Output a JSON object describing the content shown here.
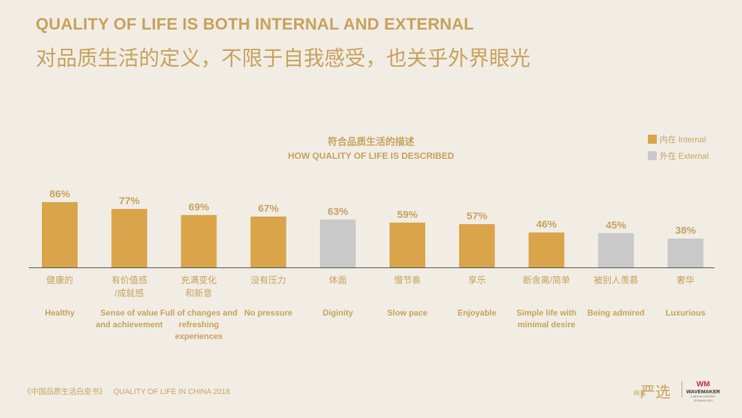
{
  "header": {
    "title_en": "QUALITY OF LIFE IS BOTH INTERNAL AND EXTERNAL",
    "title_zh": "对品质生活的定义，不限于自我感受，也关乎外界眼光"
  },
  "chart_data": {
    "type": "bar",
    "title": "符合品质生活的描述",
    "subtitle": "HOW QUALITY OF LIFE IS DESCRIBED",
    "categories_zh": [
      "健康的",
      "有价值感\n/成就感",
      "充满变化\n和新意",
      "没有压力",
      "体面",
      "慢节奏",
      "享乐",
      "断舍离/简单",
      "被别人羡慕",
      "奢华"
    ],
    "categories_en": [
      "Healthy",
      "Sense of value\nand achievement",
      "Full of changes and\nrefreshing\nexperiences",
      "No pressure",
      "Diginity",
      "Slow pace",
      "Enjoyable",
      "Simple life with\nminimal desire",
      "Being admired",
      "Luxurious"
    ],
    "values": [
      86,
      77,
      69,
      67,
      63,
      59,
      57,
      46,
      45,
      38
    ],
    "value_labels": [
      "86%",
      "77%",
      "69%",
      "67%",
      "63%",
      "59%",
      "57%",
      "46%",
      "45%",
      "38%"
    ],
    "group": [
      "internal",
      "internal",
      "internal",
      "internal",
      "external",
      "internal",
      "internal",
      "internal",
      "external",
      "external"
    ],
    "legend": [
      {
        "key": "internal",
        "label": "内在 Internal",
        "color": "#d9a44a"
      },
      {
        "key": "external",
        "label": "外在 External",
        "color": "#c9c9c9"
      }
    ],
    "legend_position": "top-right",
    "ylim": [
      0,
      100
    ],
    "grid": false
  },
  "footer": {
    "source_zh": "《中国品质生活白皮书》",
    "source_en": "QUALITY OF LIFE IN CHINA 2018"
  },
  "logos": {
    "yanxuan_small": "网易",
    "yanxuan_big": "严选",
    "wm_mark": "WM",
    "wm_name": "WAVEMAKER",
    "wm_sub": "A MEDIA CONTENT TECHNOLOGY"
  }
}
